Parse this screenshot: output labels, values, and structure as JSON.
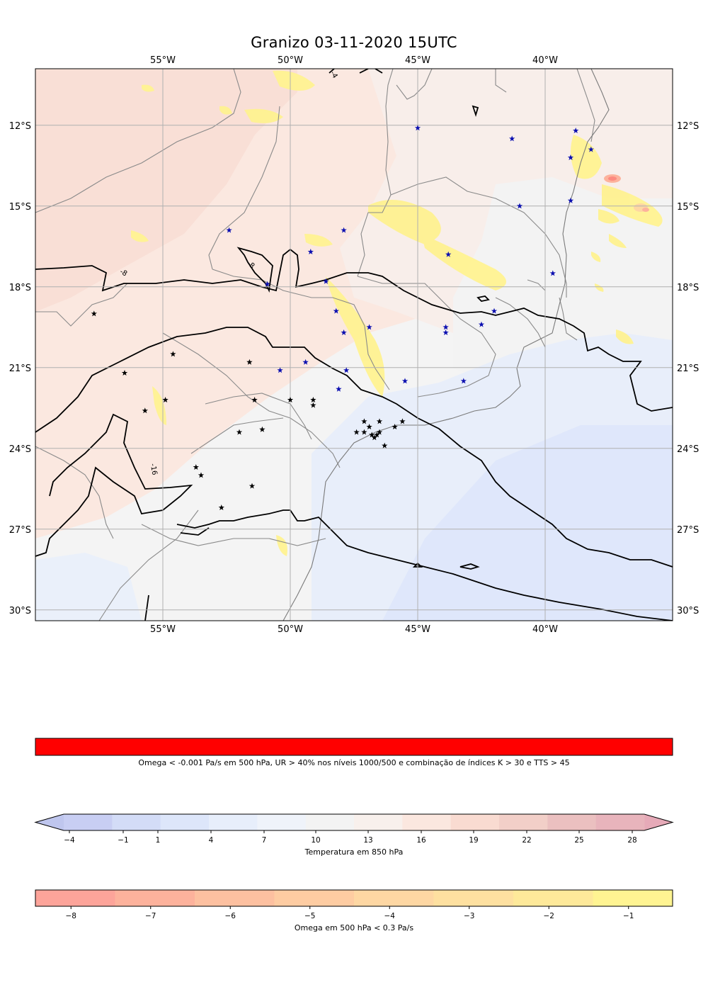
{
  "title": "Granizo 03-11-2020 15UTC",
  "map": {
    "lon_range": [
      -60,
      -35
    ],
    "lat_range": [
      -30.4,
      -9.9
    ],
    "lon_ticks": [
      -55,
      -50,
      -45,
      -40
    ],
    "lon_tick_labels": [
      "55°W",
      "50°W",
      "45°W",
      "40°W"
    ],
    "lat_ticks": [
      -12,
      -15,
      -18,
      -21,
      -24,
      -27,
      -30
    ],
    "lat_tick_labels": [
      "12°S",
      "15°S",
      "18°S",
      "21°S",
      "24°S",
      "27°S",
      "30°S"
    ],
    "grid": true,
    "contour_labels": [
      "-8",
      "-8",
      "-16",
      "-4"
    ]
  },
  "observations": {
    "blue_stars": [
      [
        -45,
        -12.1
      ],
      [
        -41.3,
        -12.5
      ],
      [
        -38.8,
        -12.2
      ],
      [
        -38.2,
        -12.9
      ],
      [
        -39,
        -13.2
      ],
      [
        -41,
        -15
      ],
      [
        -39,
        -14.8
      ],
      [
        -52.4,
        -15.9
      ],
      [
        -47.9,
        -15.9
      ],
      [
        -49.2,
        -16.7
      ],
      [
        -43.8,
        -16.8
      ],
      [
        -50.9,
        -17.9
      ],
      [
        -48.6,
        -17.8
      ],
      [
        -39.7,
        -17.5
      ],
      [
        -48.2,
        -18.9
      ],
      [
        -42,
        -18.9
      ],
      [
        -47.9,
        -19.7
      ],
      [
        -46.9,
        -19.5
      ],
      [
        -43.9,
        -19.5
      ],
      [
        -43.9,
        -19.7
      ],
      [
        -42.5,
        -19.4
      ],
      [
        -49.4,
        -20.8
      ],
      [
        -50.4,
        -21.1
      ],
      [
        -47.8,
        -21.1
      ],
      [
        -48.1,
        -21.8
      ],
      [
        -45.5,
        -21.5
      ],
      [
        -43.2,
        -21.5
      ]
    ],
    "black_stars": [
      [
        -57.7,
        -19
      ],
      [
        -56.5,
        -21.2
      ],
      [
        -54.6,
        -20.5
      ],
      [
        -54.9,
        -22.2
      ],
      [
        -55.7,
        -22.6
      ],
      [
        -51.6,
        -20.8
      ],
      [
        -51.4,
        -22.2
      ],
      [
        -50,
        -22.2
      ],
      [
        -49.1,
        -22.2
      ],
      [
        -49.1,
        -22.4
      ],
      [
        -52,
        -23.4
      ],
      [
        -51.1,
        -23.3
      ],
      [
        -47.1,
        -23
      ],
      [
        -46.9,
        -23.2
      ],
      [
        -46.5,
        -23
      ],
      [
        -45.6,
        -23
      ],
      [
        -45.9,
        -23.2
      ],
      [
        -47.4,
        -23.4
      ],
      [
        -47.1,
        -23.4
      ],
      [
        -46.8,
        -23.5
      ],
      [
        -46.6,
        -23.5
      ],
      [
        -46.5,
        -23.4
      ],
      [
        -46.7,
        -23.6
      ],
      [
        -46.3,
        -23.9
      ],
      [
        -53.7,
        -24.7
      ],
      [
        -53.5,
        -25
      ],
      [
        -51.5,
        -25.4
      ],
      [
        -52.7,
        -26.2
      ]
    ]
  },
  "colorbars": {
    "hail": {
      "label": "Omega < -0.001 Pa/s em 500 hPa, UR > 40% nos níveis 1000/500 e combinação de índices K > 30 e TTS > 45",
      "color": "#ff0000"
    },
    "temperature": {
      "label": "Temperatura em 850 hPa",
      "tick_labels": [
        "−4",
        "−1",
        "1",
        "4",
        "7",
        "10",
        "13",
        "16",
        "19",
        "22",
        "25",
        "28"
      ],
      "tick_values": [
        -4,
        -1,
        1,
        4,
        7,
        10,
        13,
        16,
        19,
        22,
        25,
        28
      ],
      "boundaries": [
        -4,
        -1,
        1,
        4,
        7,
        10,
        13,
        16,
        19,
        22,
        25,
        28
      ],
      "colors": [
        "#c8cef3",
        "#d3dcf7",
        "#dde6fa",
        "#e7eefb",
        "#eff3fa",
        "#f3f3f3",
        "#f8f0ec",
        "#fbe7df",
        "#f9dbd1",
        "#f2cfc8",
        "#ebc0c0",
        "#e8b4bc"
      ],
      "extend_low_color": "#bfc6ee",
      "extend_high_color": "#e6aab8"
    },
    "omega": {
      "label": "Omega em 500 hPa < 0.3 Pa/s",
      "tick_labels": [
        "−8",
        "−7",
        "−6",
        "−5",
        "−4",
        "−3",
        "−2",
        "−1"
      ],
      "tick_values": [
        -8,
        -7,
        -6,
        -5,
        -4,
        -3,
        -2,
        -1
      ],
      "colors": [
        "#fda49a",
        "#fdb29c",
        "#fdc0a0",
        "#fecca2",
        "#fed7a3",
        "#fee0a0",
        "#fee99a",
        "#fff492"
      ]
    }
  }
}
